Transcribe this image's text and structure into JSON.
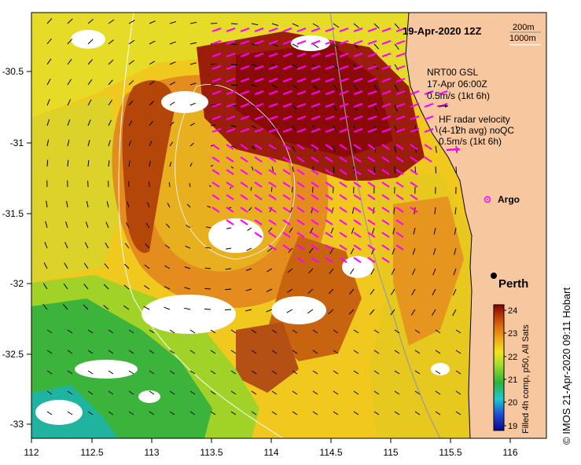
{
  "map": {
    "date_label": "19-Apr-2020 12Z",
    "contour_labels": [
      "200m",
      "1000m"
    ],
    "gsl_legend": {
      "line1": "NRT00 GSL",
      "line2": "17-Apr 06:00Z",
      "line3": "0.5m/s (1kt 6h)"
    },
    "radar_legend": {
      "line1": "HF radar velocity",
      "line2": "(4-12h avg) noQC",
      "line3": "0.5m/s (1kt 6h)"
    },
    "argo_label": "Argo",
    "city_label": "Perth",
    "colorbar": {
      "ticks": [
        "24",
        "23",
        "22",
        "21",
        "20",
        "19"
      ],
      "caption": "Filled 4h comp, p50, All Sats"
    },
    "credit": "© IMOS 21-Apr-2020 09:11 Hobart",
    "axes": {
      "x_ticks": [
        "112",
        "112.5",
        "113",
        "113.5",
        "114",
        "114.5",
        "115",
        "115.5",
        "116"
      ],
      "y_ticks": [
        "-30.5",
        "-31",
        "-31.5",
        "-32",
        "-32.5",
        "-33"
      ]
    },
    "colors": {
      "land": "#f7c8a0",
      "radar_arrow": "#ff00ff",
      "gsl_arrow": "#000000",
      "city_dot": "#000000"
    },
    "icons": [
      "argo-float-icon",
      "city-dot-icon"
    ]
  }
}
